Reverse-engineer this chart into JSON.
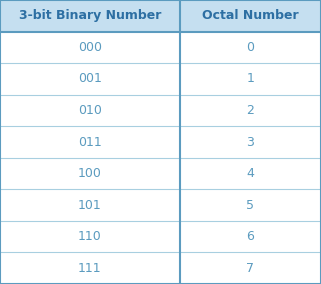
{
  "col_headers": [
    "3-bit Binary Number",
    "Octal Number"
  ],
  "rows": [
    [
      "000",
      "0"
    ],
    [
      "001",
      "1"
    ],
    [
      "010",
      "2"
    ],
    [
      "011",
      "3"
    ],
    [
      "100",
      "4"
    ],
    [
      "101",
      "5"
    ],
    [
      "110",
      "6"
    ],
    [
      "111",
      "7"
    ]
  ],
  "header_bg_color": "#c5dff0",
  "header_text_color": "#2d6fa3",
  "cell_text_color": "#5b9bbf",
  "row_line_color": "#a8cfe0",
  "outer_border_color": "#5b9bbf",
  "header_border_color": "#5b9bbf",
  "cell_bg_color": "#ffffff",
  "header_fontsize": 9,
  "cell_fontsize": 9,
  "fig_bg_color": "#ffffff",
  "col_split": 0.56
}
